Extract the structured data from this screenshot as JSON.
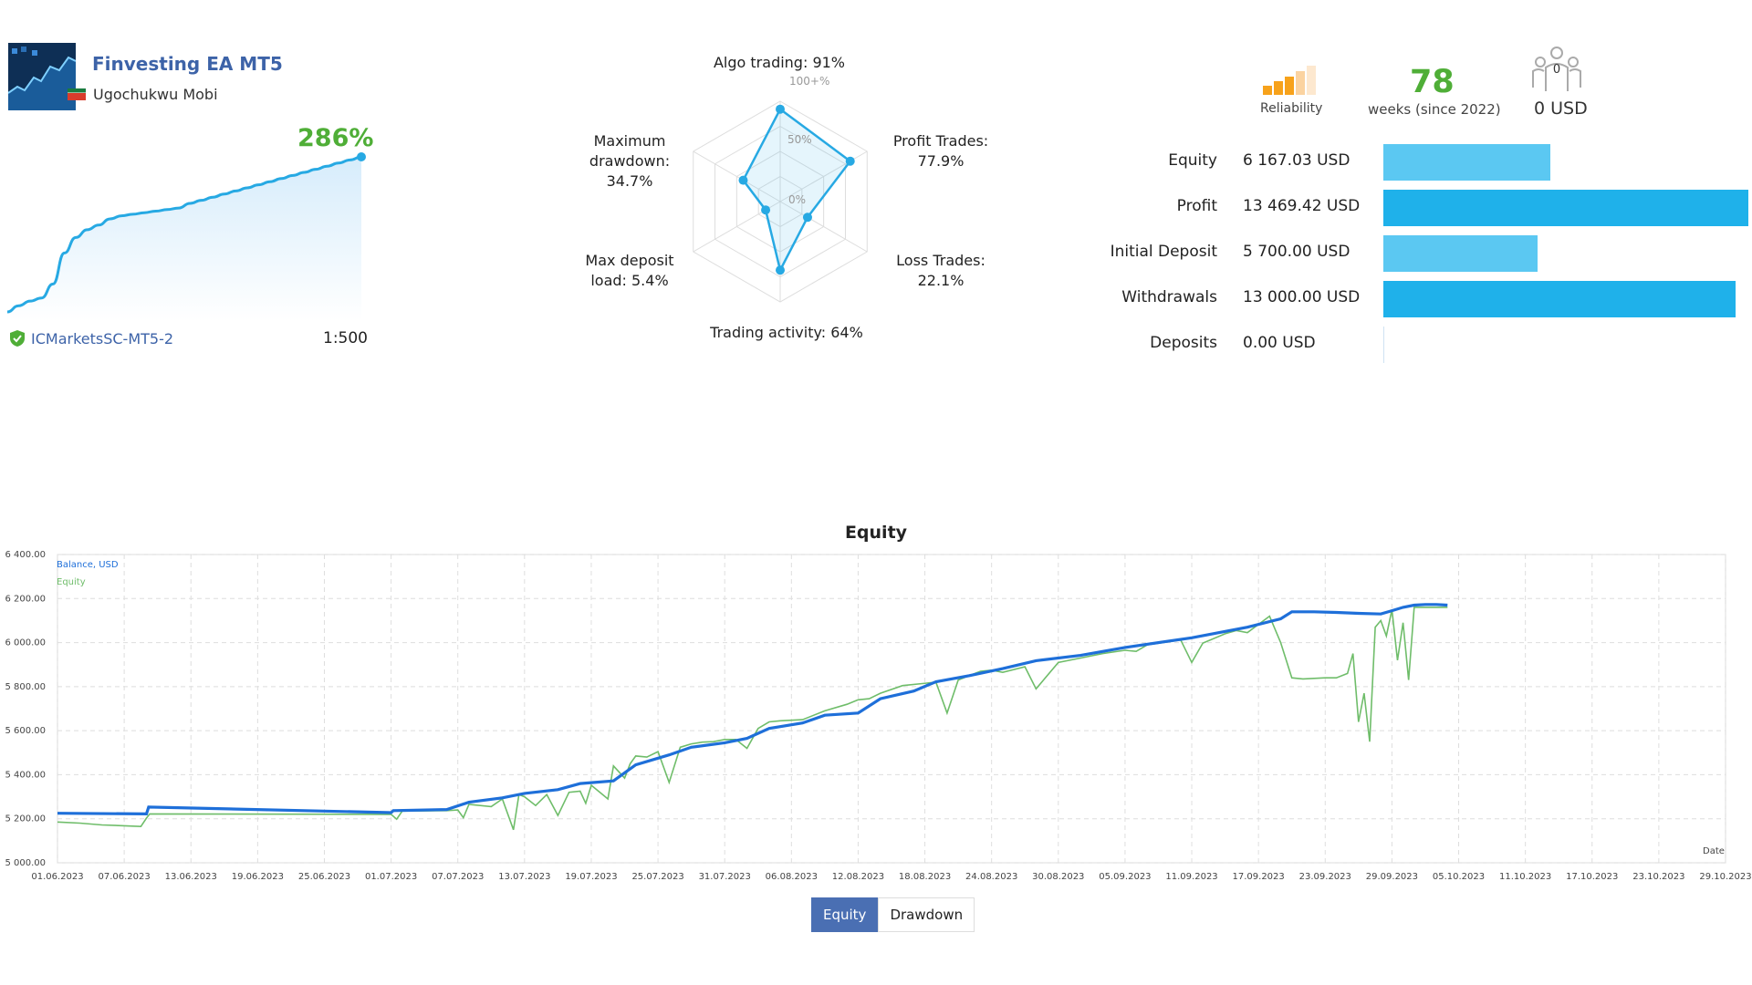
{
  "signal": {
    "title": "Finvesting EA MT5",
    "author": "Ugochukwu Mobi",
    "growth": "286%",
    "broker": "ICMarketsSC-MT5-2",
    "leverage": "1:500",
    "growth_curve": [
      0,
      4,
      7,
      9,
      18,
      38,
      48,
      53,
      56,
      60,
      62,
      63,
      64,
      65,
      66,
      67,
      70,
      72,
      74,
      76,
      78,
      80,
      82,
      84,
      86,
      88,
      90,
      92,
      94,
      96,
      98,
      100
    ]
  },
  "radar": {
    "labels": {
      "algo_trading": "Algo trading: 91%",
      "profit_trades_1": "Profit Trades:",
      "profit_trades_2": "77.9%",
      "loss_trades_1": "Loss Trades:",
      "loss_trades_2": "22.1%",
      "trading_activity": "Trading activity: 64%",
      "max_deposit_load_1": "Max deposit",
      "max_deposit_load_2": "load: 5.4%",
      "max_drawdown_1": "Maximum",
      "max_drawdown_2": "drawdown:",
      "max_drawdown_3": "34.7%"
    },
    "ring_labels": {
      "outer": "100+%",
      "middle": "50%",
      "inner": "0%"
    },
    "values": [
      0.91,
      0.779,
      0.221,
      0.64,
      0.054,
      0.347
    ]
  },
  "stats": {
    "reliability_label": "Reliability",
    "weeks": "78",
    "weeks_label": "weeks (since 2022)",
    "subscribers_count": "0",
    "subscribers_value": "0 USD",
    "rows": [
      {
        "label": "Equity",
        "value": "6 167.03 USD",
        "amount": 6167.03,
        "color": "#5bc8f2"
      },
      {
        "label": "Profit",
        "value": "13 469.42 USD",
        "amount": 13469.42,
        "color": "#1fb1ea"
      },
      {
        "label": "Initial Deposit",
        "value": "5 700.00 USD",
        "amount": 5700.0,
        "color": "#5bc8f2"
      },
      {
        "label": "Withdrawals",
        "value": "13 000.00 USD",
        "amount": 13000.0,
        "color": "#1fb1ea"
      },
      {
        "label": "Deposits",
        "value": "0.00 USD",
        "amount": 0,
        "color": "#5bc8f2"
      }
    ]
  },
  "chart_data": {
    "type": "line",
    "title": "Equity",
    "xlabel": "Date",
    "ylim": [
      5000,
      6400
    ],
    "yticks": [
      "6 400.00",
      "6 200.00",
      "6 000.00",
      "5 800.00",
      "5 600.00",
      "5 400.00",
      "5 200.00",
      "5 000.00"
    ],
    "xticks": [
      "01.06.2023",
      "07.06.2023",
      "13.06.2023",
      "19.06.2023",
      "25.06.2023",
      "01.07.2023",
      "07.07.2023",
      "13.07.2023",
      "19.07.2023",
      "25.07.2023",
      "31.07.2023",
      "06.08.2023",
      "12.08.2023",
      "18.08.2023",
      "24.08.2023",
      "30.08.2023",
      "05.09.2023",
      "11.09.2023",
      "17.09.2023",
      "23.09.2023",
      "29.09.2023",
      "05.10.2023",
      "11.10.2023",
      "17.10.2023",
      "23.10.2023",
      "29.10.2023"
    ],
    "legend": [
      {
        "name": "Balance, USD",
        "color": "#1e6fd9"
      },
      {
        "name": "Equity",
        "color": "#6fbd6a"
      }
    ],
    "series": [
      {
        "name": "Balance, USD",
        "x": [
          0,
          8,
          8.2,
          30,
          30.2,
          35,
          37,
          40,
          42,
          45,
          47,
          50,
          52,
          55,
          57,
          60,
          62,
          64,
          67,
          69,
          72,
          74,
          77,
          79,
          82,
          85,
          88,
          92,
          96,
          102,
          107,
          110,
          111,
          113,
          115,
          117,
          119,
          120,
          121,
          122,
          123,
          124,
          125
        ],
        "y": [
          5225,
          5222,
          5253,
          5228,
          5237,
          5242,
          5275,
          5295,
          5315,
          5332,
          5360,
          5372,
          5445,
          5490,
          5525,
          5545,
          5565,
          5610,
          5635,
          5670,
          5680,
          5745,
          5780,
          5822,
          5850,
          5882,
          5918,
          5942,
          5978,
          6022,
          6070,
          6108,
          6140,
          6140,
          6137,
          6133,
          6130,
          6145,
          6160,
          6170,
          6173,
          6173,
          6170
        ]
      },
      {
        "name": "Equity",
        "x": [
          0,
          2,
          4,
          6,
          7.5,
          8,
          8.3,
          30,
          30.5,
          31,
          35,
          36,
          36.5,
          37,
          39,
          40,
          41,
          41.5,
          42,
          43,
          44,
          45,
          46,
          47,
          47.5,
          48,
          49.5,
          50,
          51,
          51.5,
          52,
          53,
          54,
          55,
          56,
          57,
          58,
          59,
          60,
          61,
          62,
          63,
          64,
          65,
          67,
          69,
          71,
          72,
          73,
          74,
          76,
          79,
          80,
          81,
          82,
          83,
          84,
          85,
          87,
          88,
          90,
          92,
          94,
          96,
          97,
          98,
          101,
          102,
          103,
          105,
          106,
          107,
          109,
          110,
          111,
          112,
          114,
          115,
          116,
          116.5,
          117,
          117.5,
          118,
          118.5,
          119,
          119.5,
          120,
          120.5,
          121,
          121.5,
          122,
          125
        ],
        "y": [
          5185,
          5180,
          5172,
          5168,
          5165,
          5203,
          5222,
          5220,
          5198,
          5235,
          5237,
          5240,
          5205,
          5265,
          5255,
          5290,
          5150,
          5310,
          5300,
          5260,
          5310,
          5215,
          5320,
          5325,
          5270,
          5352,
          5290,
          5440,
          5385,
          5450,
          5485,
          5480,
          5505,
          5365,
          5525,
          5540,
          5548,
          5550,
          5560,
          5560,
          5520,
          5610,
          5640,
          5645,
          5650,
          5690,
          5720,
          5740,
          5745,
          5770,
          5805,
          5820,
          5680,
          5830,
          5850,
          5870,
          5875,
          5865,
          5890,
          5790,
          5910,
          5930,
          5950,
          5965,
          5960,
          5990,
          6012,
          5910,
          5998,
          6040,
          6055,
          6045,
          6120,
          6000,
          5840,
          5835,
          5840,
          5840,
          5860,
          5950,
          5640,
          5770,
          5550,
          6070,
          6100,
          6030,
          6150,
          5920,
          6090,
          5830,
          6160,
          6160
        ]
      }
    ]
  },
  "tabs": [
    {
      "label": "Equity",
      "active": true
    },
    {
      "label": "Drawdown",
      "active": false
    }
  ]
}
